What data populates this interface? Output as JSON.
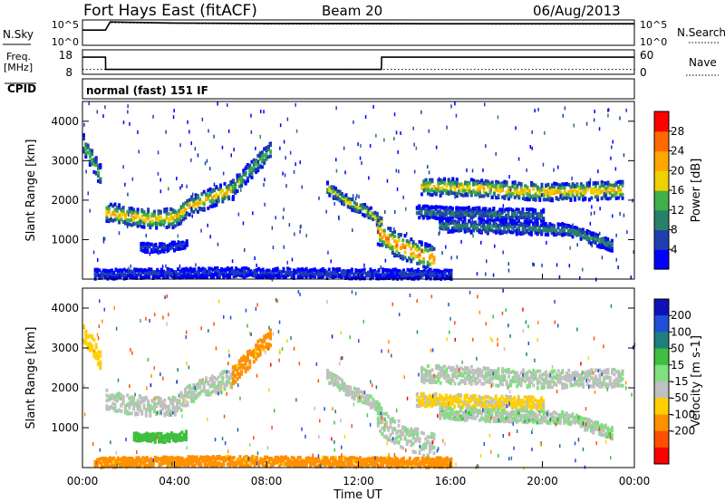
{
  "header": {
    "station": "Fort Hays East (fitACF)",
    "beam": "Beam 20",
    "date": "06/Aug/2013"
  },
  "sky_panel": {
    "left_label": "N.Sky",
    "right_label": "N.Search",
    "left_ticks": [
      "10^5",
      "10^0"
    ],
    "right_ticks": [
      "10^5",
      "10^0"
    ]
  },
  "freq_panel": {
    "left_label_1": "Freq.",
    "left_label_2": "[MHz]",
    "right_label": "Nave",
    "left_ticks": [
      "18",
      "8"
    ],
    "right_ticks": [
      "60",
      "0"
    ]
  },
  "cpid_panel": {
    "label": "CPID",
    "mode": "normal (fast) 151 IF"
  },
  "x_axis": {
    "label": "Time UT",
    "ticks": [
      "00:00",
      "04:00",
      "08:00",
      "12:00",
      "16:00",
      "20:00",
      "00:00"
    ]
  },
  "power_colorbar": {
    "label": "Power [dB]",
    "ticks": [
      "4",
      "8",
      "12",
      "16",
      "20",
      "24",
      "28"
    ],
    "colors": [
      "#0000ff",
      "#1f3fb0",
      "#2a7f6a",
      "#3fb04a",
      "#f0d000",
      "#ffa500",
      "#ff6a00",
      "#ff0000"
    ]
  },
  "velocity_colorbar": {
    "label": "Velocity [m s-1]",
    "ticks": [
      "200",
      "100",
      "50",
      "15",
      "-15",
      "-50",
      "-100",
      "-200"
    ],
    "colors": [
      "#1010b8",
      "#2050d8",
      "#1f7f7f",
      "#3fbf3f",
      "#7fe07f",
      "#c0c0c0",
      "#ffd000",
      "#ff9000",
      "#ff5000",
      "#ff0000"
    ]
  },
  "chart_data": [
    {
      "type": "line",
      "name": "sky-noise",
      "x_unit": "hours UT",
      "x": [
        0,
        1,
        1.2,
        4,
        8,
        12,
        16,
        20,
        24
      ],
      "series": [
        {
          "name": "N.Sky",
          "values": [
            1000.0,
            1000.0,
            40000.0,
            25000.0,
            20000.0,
            20000.0,
            18000.0,
            18000.0,
            18000.0
          ]
        },
        {
          "name": "N.Search",
          "values": [
            1000.0,
            1000.0,
            30000.0,
            20000.0,
            15000.0,
            15000.0,
            15000.0,
            14000.0,
            14000.0
          ]
        }
      ],
      "ylim_log10": [
        0,
        5
      ]
    },
    {
      "type": "line",
      "name": "frequency-nave",
      "x": [
        0,
        1,
        1.01,
        13,
        13.01,
        24
      ],
      "series": [
        {
          "name": "Freq. [MHz]",
          "values": [
            15,
            15,
            10,
            10,
            15,
            15
          ]
        },
        {
          "name": "Nave",
          "values": [
            10,
            10,
            10,
            10,
            10,
            10
          ]
        }
      ],
      "ylim": [
        8,
        18
      ]
    },
    {
      "type": "heatmap",
      "name": "power",
      "xlabel": "Time UT",
      "ylabel": "Slant Range [km]",
      "xlim": [
        0,
        24
      ],
      "ylim": [
        0,
        4500
      ],
      "yticks": [
        1000,
        2000,
        3000,
        4000
      ],
      "units": "dB",
      "bands": [
        {
          "t": [
            0,
            0.4,
            0.8
          ],
          "r": [
            3400,
            3000,
            2550
          ],
          "w": 260,
          "v": 16
        },
        {
          "t": [
            1,
            2,
            3,
            4,
            4.6,
            5.5,
            6.5
          ],
          "r": [
            1700,
            1580,
            1520,
            1550,
            1850,
            2050,
            2250
          ],
          "w": 240,
          "v": 22
        },
        {
          "t": [
            6.5,
            7.5,
            8.2
          ],
          "r": [
            2300,
            2900,
            3300
          ],
          "w": 220,
          "v": 16
        },
        {
          "t": [
            2.5,
            3.5,
            4.5
          ],
          "r": [
            800,
            780,
            900
          ],
          "w": 110,
          "v": 6
        },
        {
          "t": [
            10.6,
            11.5,
            12.5,
            13
          ],
          "r": [
            2300,
            1950,
            1650,
            1400
          ],
          "w": 150,
          "v": 18
        },
        {
          "t": [
            12.8,
            13.5,
            14.5,
            15.3
          ],
          "r": [
            1200,
            900,
            650,
            500
          ],
          "w": 320,
          "v": 26
        },
        {
          "t": [
            14.7,
            17,
            20,
            23.5
          ],
          "r": [
            2350,
            2300,
            2200,
            2250
          ],
          "w": 220,
          "v": 22
        },
        {
          "t": [
            14.5,
            17,
            20
          ],
          "r": [
            1700,
            1650,
            1600
          ],
          "w": 160,
          "v": 10
        },
        {
          "t": [
            15.5,
            18,
            21,
            23
          ],
          "r": [
            1350,
            1300,
            1250,
            850
          ],
          "w": 150,
          "v": 12
        },
        {
          "t": [
            0.5,
            6,
            12,
            16
          ],
          "r": [
            120,
            160,
            130,
            120
          ],
          "w": 120,
          "v": 6
        }
      ]
    },
    {
      "type": "heatmap",
      "name": "velocity",
      "xlabel": "Time UT",
      "ylabel": "Slant Range [km]",
      "xlim": [
        0,
        24
      ],
      "ylim": [
        0,
        4500
      ],
      "yticks": [
        1000,
        2000,
        3000,
        4000
      ],
      "units": "m s-1",
      "bands": [
        {
          "t": [
            0,
            0.4,
            0.8
          ],
          "r": [
            3400,
            3000,
            2550
          ],
          "w": 260,
          "v": -40
        },
        {
          "t": [
            1,
            2,
            3,
            4,
            4.6,
            5.5,
            6.5
          ],
          "r": [
            1700,
            1580,
            1520,
            1550,
            1850,
            2050,
            2250
          ],
          "w": 240,
          "v": 0
        },
        {
          "t": [
            6.5,
            7.5,
            8.2
          ],
          "r": [
            2300,
            2900,
            3300
          ],
          "w": 220,
          "v": -60
        },
        {
          "t": [
            2.2,
            3.5,
            4.5
          ],
          "r": [
            750,
            740,
            800
          ],
          "w": 110,
          "v": 30
        },
        {
          "t": [
            10.6,
            11.5,
            12.5,
            13
          ],
          "r": [
            2300,
            1950,
            1650,
            1400
          ],
          "w": 150,
          "v": 0
        },
        {
          "t": [
            12.8,
            13.5,
            14.5,
            15.3
          ],
          "r": [
            1200,
            900,
            650,
            500
          ],
          "w": 320,
          "v": 0
        },
        {
          "t": [
            14.7,
            17,
            20,
            23.5
          ],
          "r": [
            2350,
            2300,
            2200,
            2250
          ],
          "w": 220,
          "v": 0
        },
        {
          "t": [
            14.5,
            17,
            20
          ],
          "r": [
            1700,
            1650,
            1600
          ],
          "w": 160,
          "v": -20
        },
        {
          "t": [
            15.5,
            18,
            21,
            23
          ],
          "r": [
            1350,
            1300,
            1250,
            850
          ],
          "w": 150,
          "v": 5
        },
        {
          "t": [
            0.5,
            6,
            12,
            16
          ],
          "r": [
            120,
            160,
            130,
            120
          ],
          "w": 120,
          "v": -60
        }
      ]
    }
  ]
}
